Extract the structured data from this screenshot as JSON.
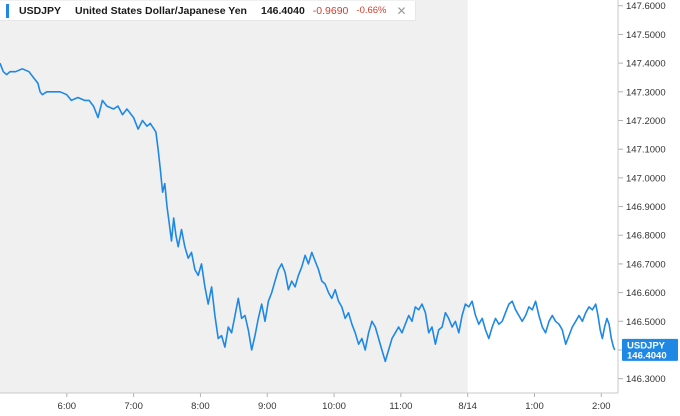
{
  "legend": {
    "symbol": "USDJPY",
    "name": "United States Dollar/Japanese Yen",
    "price": "146.4040",
    "change": "-0.9690",
    "change_pct": "-0.66%",
    "close_glyph": "✕"
  },
  "badge": {
    "symbol": "USDJPY",
    "price": "146.4040",
    "value": 146.404
  },
  "colors": {
    "line": "#1f88e5",
    "session_shade": "#f0f0f0",
    "negative": "#d23c2b",
    "badge": "#1f88e5"
  },
  "chart_data": {
    "type": "line",
    "title": "",
    "xlabel": "",
    "ylabel": "",
    "ylim": [
      146.25,
      147.62
    ],
    "xlim": [
      "5:00",
      "2:15"
    ],
    "y_axis_position": "right",
    "y_ticks": [
      "146.3000",
      "146.4000",
      "146.5000",
      "146.6000",
      "146.7000",
      "146.8000",
      "146.9000",
      "147.0000",
      "147.1000",
      "147.2000",
      "147.3000",
      "147.4000",
      "147.5000",
      "147.6000"
    ],
    "x_ticks": [
      {
        "label": "6:00",
        "t": 60
      },
      {
        "label": "7:00",
        "t": 120
      },
      {
        "label": "8:00",
        "t": 180
      },
      {
        "label": "9:00",
        "t": 240
      },
      {
        "label": "10:00",
        "t": 300
      },
      {
        "label": "11:00",
        "t": 360
      },
      {
        "label": "8/14",
        "t": 420
      },
      {
        "label": "1:00",
        "t": 480
      },
      {
        "label": "2:00",
        "t": 540
      }
    ],
    "shaded_region": {
      "from": "5:00",
      "to": "8/14"
    },
    "grid": false,
    "series": [
      {
        "points": [
          [
            0,
            147.4
          ],
          [
            3,
            147.37
          ],
          [
            6,
            147.36
          ],
          [
            9,
            147.37
          ],
          [
            14,
            147.37
          ],
          [
            20,
            147.38
          ],
          [
            26,
            147.37
          ],
          [
            30,
            147.35
          ],
          [
            34,
            147.33
          ],
          [
            36,
            147.3
          ],
          [
            38,
            147.29
          ],
          [
            42,
            147.3
          ],
          [
            48,
            147.3
          ],
          [
            54,
            147.3
          ],
          [
            60,
            147.29
          ],
          [
            64,
            147.27
          ],
          [
            70,
            147.28
          ],
          [
            76,
            147.27
          ],
          [
            80,
            147.27
          ],
          [
            84,
            147.25
          ],
          [
            88,
            147.21
          ],
          [
            92,
            147.27
          ],
          [
            96,
            147.25
          ],
          [
            102,
            147.24
          ],
          [
            106,
            147.25
          ],
          [
            110,
            147.22
          ],
          [
            114,
            147.24
          ],
          [
            120,
            147.21
          ],
          [
            124,
            147.17
          ],
          [
            128,
            147.2
          ],
          [
            132,
            147.18
          ],
          [
            135,
            147.19
          ],
          [
            140,
            147.16
          ],
          [
            142,
            147.1
          ],
          [
            144,
            147.03
          ],
          [
            146,
            146.95
          ],
          [
            148,
            146.98
          ],
          [
            150,
            146.9
          ],
          [
            152,
            146.84
          ],
          [
            154,
            146.78
          ],
          [
            156,
            146.86
          ],
          [
            158,
            146.8
          ],
          [
            160,
            146.76
          ],
          [
            163,
            146.82
          ],
          [
            166,
            146.76
          ],
          [
            169,
            146.72
          ],
          [
            172,
            146.74
          ],
          [
            175,
            146.68
          ],
          [
            178,
            146.66
          ],
          [
            181,
            146.7
          ],
          [
            184,
            146.62
          ],
          [
            187,
            146.56
          ],
          [
            190,
            146.62
          ],
          [
            193,
            146.52
          ],
          [
            196,
            146.44
          ],
          [
            199,
            146.45
          ],
          [
            202,
            146.41
          ],
          [
            205,
            146.48
          ],
          [
            208,
            146.46
          ],
          [
            211,
            146.52
          ],
          [
            214,
            146.58
          ],
          [
            217,
            146.51
          ],
          [
            220,
            146.52
          ],
          [
            223,
            146.47
          ],
          [
            226,
            146.4
          ],
          [
            229,
            146.45
          ],
          [
            232,
            146.51
          ],
          [
            235,
            146.56
          ],
          [
            238,
            146.5
          ],
          [
            241,
            146.57
          ],
          [
            244,
            146.6
          ],
          [
            247,
            146.64
          ],
          [
            250,
            146.68
          ],
          [
            253,
            146.7
          ],
          [
            256,
            146.67
          ],
          [
            259,
            146.61
          ],
          [
            262,
            146.64
          ],
          [
            265,
            146.62
          ],
          [
            268,
            146.66
          ],
          [
            271,
            146.69
          ],
          [
            274,
            146.73
          ],
          [
            277,
            146.7
          ],
          [
            280,
            146.74
          ],
          [
            283,
            146.71
          ],
          [
            286,
            146.68
          ],
          [
            289,
            146.64
          ],
          [
            292,
            146.63
          ],
          [
            295,
            146.6
          ],
          [
            298,
            146.58
          ],
          [
            301,
            146.61
          ],
          [
            304,
            146.57
          ],
          [
            307,
            146.55
          ],
          [
            310,
            146.51
          ],
          [
            313,
            146.53
          ],
          [
            316,
            146.49
          ],
          [
            319,
            146.46
          ],
          [
            322,
            146.42
          ],
          [
            325,
            146.44
          ],
          [
            328,
            146.4
          ],
          [
            331,
            146.46
          ],
          [
            334,
            146.5
          ],
          [
            337,
            146.48
          ],
          [
            340,
            146.44
          ],
          [
            343,
            146.4
          ],
          [
            346,
            146.36
          ],
          [
            349,
            146.4
          ],
          [
            352,
            146.44
          ],
          [
            355,
            146.46
          ],
          [
            358,
            146.48
          ],
          [
            361,
            146.46
          ],
          [
            364,
            146.49
          ],
          [
            367,
            146.52
          ],
          [
            370,
            146.5
          ],
          [
            373,
            146.55
          ],
          [
            376,
            146.54
          ],
          [
            379,
            146.56
          ],
          [
            382,
            146.53
          ],
          [
            385,
            146.46
          ],
          [
            388,
            146.48
          ],
          [
            391,
            146.42
          ],
          [
            394,
            146.47
          ],
          [
            397,
            146.48
          ],
          [
            400,
            146.53
          ],
          [
            403,
            146.51
          ],
          [
            406,
            146.48
          ],
          [
            409,
            146.5
          ],
          [
            412,
            146.46
          ],
          [
            415,
            146.52
          ],
          [
            418,
            146.56
          ],
          [
            421,
            146.55
          ],
          [
            424,
            146.57
          ],
          [
            427,
            146.52
          ],
          [
            430,
            146.49
          ],
          [
            433,
            146.51
          ],
          [
            436,
            146.47
          ],
          [
            439,
            146.44
          ],
          [
            442,
            146.48
          ],
          [
            445,
            146.51
          ],
          [
            448,
            146.49
          ],
          [
            451,
            146.5
          ],
          [
            454,
            146.53
          ],
          [
            457,
            146.56
          ],
          [
            460,
            146.57
          ],
          [
            463,
            146.54
          ],
          [
            466,
            146.52
          ],
          [
            469,
            146.5
          ],
          [
            472,
            146.52
          ],
          [
            475,
            146.55
          ],
          [
            478,
            146.54
          ],
          [
            481,
            146.57
          ],
          [
            484,
            146.52
          ],
          [
            487,
            146.48
          ],
          [
            490,
            146.46
          ],
          [
            493,
            146.5
          ],
          [
            496,
            146.52
          ],
          [
            499,
            146.5
          ],
          [
            502,
            146.49
          ],
          [
            505,
            146.47
          ],
          [
            508,
            146.42
          ],
          [
            511,
            146.45
          ],
          [
            514,
            146.48
          ],
          [
            517,
            146.5
          ],
          [
            520,
            146.52
          ],
          [
            523,
            146.5
          ],
          [
            526,
            146.53
          ],
          [
            529,
            146.55
          ],
          [
            532,
            146.54
          ],
          [
            535,
            146.56
          ],
          [
            537,
            146.52
          ],
          [
            539,
            146.47
          ],
          [
            541,
            146.44
          ],
          [
            543,
            146.48
          ],
          [
            545,
            146.51
          ],
          [
            547,
            146.49
          ],
          [
            549,
            146.44
          ],
          [
            551,
            146.41
          ],
          [
            552,
            146.4
          ]
        ]
      }
    ]
  }
}
